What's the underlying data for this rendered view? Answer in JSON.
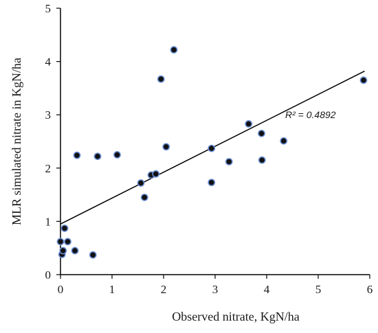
{
  "chart_data": {
    "type": "scatter",
    "title": "",
    "xlabel": "Observed nitrate, KgN/ha",
    "ylabel": "MLR simulated nitrate in KgN/ha",
    "xlim": [
      0,
      6
    ],
    "ylim": [
      0,
      5
    ],
    "xticks": [
      "0",
      "1",
      "2",
      "3",
      "4",
      "5",
      "6"
    ],
    "yticks": [
      "0",
      "1",
      "2",
      "3",
      "4",
      "5"
    ],
    "grid": false,
    "legend": "none",
    "series": [
      {
        "points": [
          [
            0.0,
            0.62
          ],
          [
            0.03,
            0.38
          ],
          [
            0.05,
            0.45
          ],
          [
            0.08,
            0.87
          ],
          [
            0.14,
            0.62
          ],
          [
            0.28,
            0.45
          ],
          [
            0.32,
            2.24
          ],
          [
            0.63,
            0.37
          ],
          [
            0.72,
            2.22
          ],
          [
            1.1,
            2.25
          ],
          [
            1.56,
            1.72
          ],
          [
            1.63,
            1.45
          ],
          [
            1.76,
            1.87
          ],
          [
            1.85,
            1.89
          ],
          [
            1.95,
            3.67
          ],
          [
            2.05,
            2.4
          ],
          [
            2.2,
            4.22
          ],
          [
            2.93,
            2.37
          ],
          [
            2.93,
            1.73
          ],
          [
            3.27,
            2.12
          ],
          [
            3.65,
            2.83
          ],
          [
            3.9,
            2.65
          ],
          [
            3.91,
            2.15
          ],
          [
            4.33,
            2.51
          ],
          [
            5.88,
            3.65
          ]
        ],
        "marker_color": "#111111",
        "marker_edge_color": "#6b8fd6"
      }
    ],
    "trendline": {
      "type": "linear",
      "x_range": [
        0,
        5.9
      ],
      "y_start": 0.95,
      "y_end": 3.82,
      "color": "#000000"
    },
    "annotations": [
      {
        "text": "R² = 0.4892",
        "x": 4.4,
        "y": 3.0
      }
    ]
  }
}
